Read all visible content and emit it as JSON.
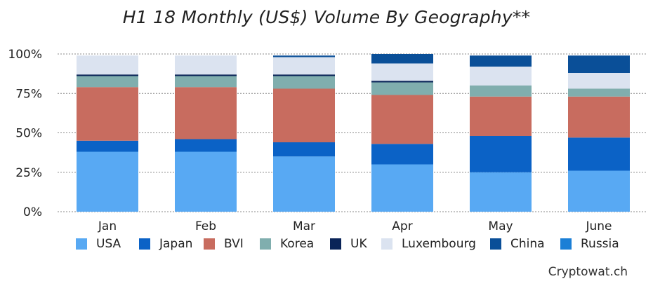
{
  "chart_data": {
    "type": "bar",
    "stacked": true,
    "title": "H1 18 Monthly (US$) Volume By Geography**",
    "categories": [
      "Jan",
      "Feb",
      "Mar",
      "Apr",
      "May",
      "June"
    ],
    "yticks": [
      "0%",
      "25%",
      "50%",
      "75%",
      "100%"
    ],
    "ylim": [
      0,
      100
    ],
    "grid": true,
    "series": [
      {
        "name": "USA",
        "color": "#58a9f3",
        "values": [
          38,
          38,
          35,
          30,
          25,
          26
        ]
      },
      {
        "name": "Japan",
        "color": "#0b62c6",
        "values": [
          7,
          8,
          9,
          13,
          23,
          21
        ]
      },
      {
        "name": "BVI",
        "color": "#c86c5f",
        "values": [
          34,
          33,
          34,
          31,
          25,
          26
        ]
      },
      {
        "name": "Korea",
        "color": "#80aeae",
        "values": [
          7,
          7,
          8,
          8,
          7,
          5
        ]
      },
      {
        "name": "UK",
        "color": "#0a2458",
        "values": [
          1,
          1,
          1,
          1,
          0,
          0
        ]
      },
      {
        "name": "Luxembourg",
        "color": "#dbe3f0",
        "values": [
          12,
          12,
          11,
          11,
          12,
          10
        ]
      },
      {
        "name": "China",
        "color": "#0a4f98",
        "values": [
          0,
          0,
          1,
          6,
          7,
          11
        ]
      },
      {
        "name": "Russia",
        "color": "#1b7fd6",
        "values": [
          0,
          0,
          0,
          0,
          0,
          0
        ]
      }
    ]
  },
  "source": "Cryptowat.ch"
}
